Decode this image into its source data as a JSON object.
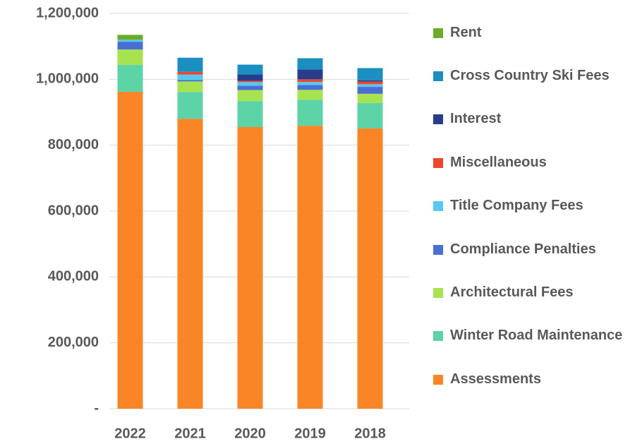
{
  "chart_data": {
    "type": "stacked_bar",
    "categories": [
      "2022",
      "2021",
      "2020",
      "2019",
      "2018"
    ],
    "series": [
      {
        "name": "Assessments",
        "color": "#fa8526",
        "values": [
          962000,
          880000,
          855000,
          859000,
          851000
        ]
      },
      {
        "name": "Winter Road Maintenance",
        "color": "#5dd3a8",
        "values": [
          81500,
          81500,
          79000,
          79000,
          77000
        ]
      },
      {
        "name": "Architectural Fees",
        "color": "#a7e34f",
        "values": [
          47000,
          32000,
          33500,
          30000,
          28000
        ]
      },
      {
        "name": "Compliance Penalties",
        "color": "#4a6fd4",
        "values": [
          23500,
          4000,
          13000,
          15000,
          21000
        ]
      },
      {
        "name": "Title Company Fees",
        "color": "#57c8f0",
        "values": [
          6000,
          17000,
          11000,
          9000,
          8000
        ]
      },
      {
        "name": "Miscellaneous",
        "color": "#f0452a",
        "values": [
          0,
          8000,
          4000,
          8000,
          8000
        ]
      },
      {
        "name": "Interest",
        "color": "#283d8c",
        "values": [
          0,
          0,
          19000,
          30000,
          4000
        ]
      },
      {
        "name": "Cross Country Ski Fees",
        "color": "#1b8fc0",
        "values": [
          0,
          43000,
          30000,
          34000,
          37000
        ]
      },
      {
        "name": "Rent",
        "color": "#6aac2a",
        "values": [
          15000,
          0,
          0,
          0,
          0
        ]
      }
    ],
    "ylim": [
      0,
      1200000
    ],
    "yticks": [
      {
        "value": 0,
        "label": "-"
      },
      {
        "value": 200000,
        "label": "200,000"
      },
      {
        "value": 400000,
        "label": "400,000"
      },
      {
        "value": 600000,
        "label": "600,000"
      },
      {
        "value": 800000,
        "label": "800,000"
      },
      {
        "value": 1000000,
        "label": "1,000,000"
      },
      {
        "value": 1200000,
        "label": "1,200,000"
      }
    ],
    "grid": true
  }
}
